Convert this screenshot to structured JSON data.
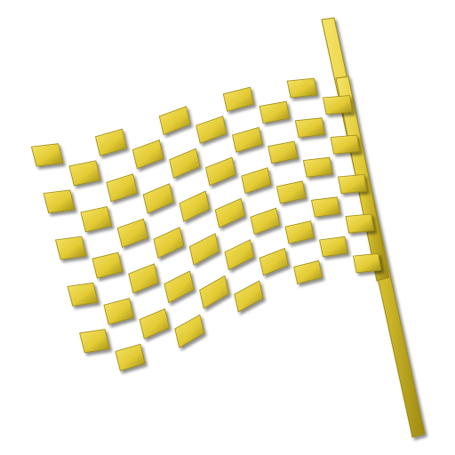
{
  "image": {
    "subject": "checkered-racing-flag",
    "icon_name": "checkered-flag-icon",
    "colors": {
      "checker_fill": "#e3cb34",
      "checker_highlight": "#f6e468",
      "checker_edge": "#9c8a14",
      "pole_fill": "#e0c832",
      "pole_edge": "#9c8a14",
      "shadow": "#000000",
      "background": "#ffffff"
    },
    "pattern": {
      "rows": 10,
      "columns": 10
    }
  }
}
